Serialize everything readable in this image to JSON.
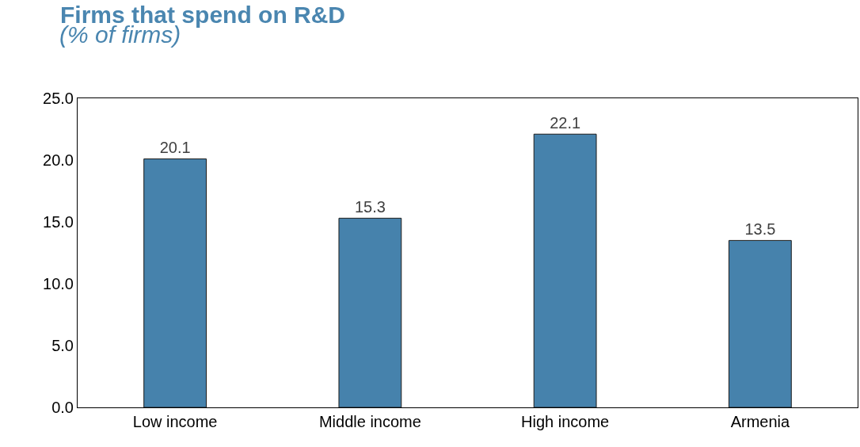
{
  "chart_data": {
    "type": "bar",
    "title": "Firms that spend on R&D",
    "subtitle": "(% of firms)",
    "categories": [
      "Low income",
      "Middle income",
      "High income",
      "Armenia"
    ],
    "values": [
      20.1,
      15.3,
      22.1,
      13.5
    ],
    "color": "#4682ac",
    "ylim": [
      0,
      25
    ],
    "yticks": [
      {
        "value": 0,
        "label": "0.0"
      },
      {
        "value": 5,
        "label": "5.0"
      },
      {
        "value": 10,
        "label": "10.0"
      },
      {
        "value": 15,
        "label": "15.0"
      },
      {
        "value": 20,
        "label": "20.0"
      },
      {
        "value": 25,
        "label": "25.0"
      }
    ],
    "data_labels": true
  }
}
